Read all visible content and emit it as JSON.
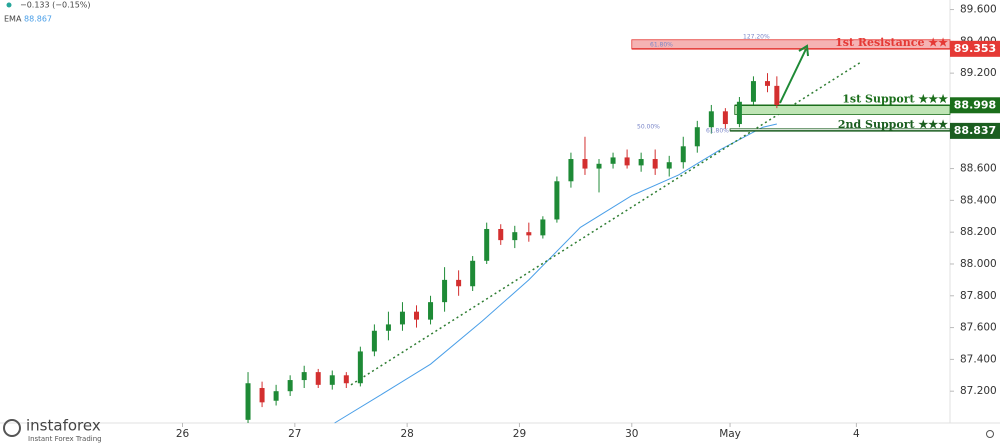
{
  "header": {
    "change": "−0.133 (−0.15%)",
    "ema_name": "EMA",
    "ema_value": "88.867",
    "logo": "instaforex",
    "logo_tagline": "Instant Forex Trading"
  },
  "chart_data": {
    "type": "candlestick",
    "x": [
      14,
      17,
      20,
      23,
      26,
      29,
      32,
      35,
      38,
      41,
      44,
      47,
      50,
      53,
      56,
      59,
      62,
      65,
      68,
      71,
      74,
      77,
      80,
      83,
      86,
      89,
      92,
      95,
      98,
      101,
      104,
      107,
      110,
      113,
      116,
      119,
      122,
      125,
      127
    ],
    "open": [
      87.02,
      87.22,
      87.14,
      87.2,
      87.27,
      87.32,
      87.24,
      87.3,
      87.25,
      87.45,
      87.58,
      87.62,
      87.7,
      87.65,
      87.76,
      87.9,
      87.86,
      88.02,
      88.22,
      88.15,
      88.2,
      88.18,
      88.28,
      88.52,
      88.66,
      88.6,
      88.63,
      88.67,
      88.62,
      88.66,
      88.6,
      88.64,
      88.74,
      88.86,
      88.96,
      88.88,
      89.02,
      89.15,
      89.12
    ],
    "high": [
      87.32,
      87.26,
      87.24,
      87.3,
      87.36,
      87.34,
      87.33,
      87.32,
      87.48,
      87.62,
      87.7,
      87.76,
      87.74,
      87.8,
      87.98,
      87.96,
      88.05,
      88.26,
      88.25,
      88.24,
      88.26,
      88.3,
      88.55,
      88.7,
      88.8,
      88.66,
      88.7,
      88.72,
      88.7,
      88.72,
      88.68,
      88.8,
      88.9,
      89.0,
      88.98,
      89.05,
      89.18,
      89.2,
      89.18
    ],
    "low": [
      87.0,
      87.1,
      87.11,
      87.17,
      87.22,
      87.22,
      87.21,
      87.22,
      87.23,
      87.42,
      87.52,
      87.58,
      87.6,
      87.62,
      87.7,
      87.8,
      87.83,
      88.0,
      88.12,
      88.1,
      88.14,
      88.16,
      88.26,
      88.48,
      88.56,
      88.45,
      88.6,
      88.6,
      88.58,
      88.56,
      88.55,
      88.6,
      88.7,
      88.82,
      88.85,
      88.86,
      89.0,
      89.08,
      88.98
    ],
    "close": [
      87.25,
      87.13,
      87.2,
      87.27,
      87.32,
      87.24,
      87.3,
      87.25,
      87.45,
      87.58,
      87.62,
      87.7,
      87.65,
      87.76,
      87.9,
      87.86,
      88.02,
      88.22,
      88.15,
      88.2,
      88.18,
      88.28,
      88.52,
      88.66,
      88.6,
      88.63,
      88.67,
      88.62,
      88.66,
      88.6,
      88.64,
      88.74,
      88.86,
      88.96,
      88.88,
      89.02,
      89.15,
      89.12,
      89.0
    ],
    "up_color": "#1e8a36",
    "down_color": "#d32f2f",
    "xlim": [
      -39,
      164
    ],
    "xticks": [
      {
        "value": 0,
        "label": "26"
      },
      {
        "value": 24,
        "label": "27"
      },
      {
        "value": 48,
        "label": "28"
      },
      {
        "value": 72,
        "label": "29"
      },
      {
        "value": 96,
        "label": "30"
      },
      {
        "value": 117,
        "label": "May"
      },
      {
        "value": 144,
        "label": "4"
      }
    ],
    "ylim": [
      87.0,
      89.66
    ],
    "yticks": [
      {
        "value": 89.6,
        "label": "89.600"
      },
      {
        "value": 89.4,
        "label": "89.400"
      },
      {
        "value": 89.2,
        "label": "89.200"
      },
      {
        "value": 88.6,
        "label": "88.600"
      },
      {
        "value": 88.4,
        "label": "88.400"
      },
      {
        "value": 88.2,
        "label": "88.200"
      },
      {
        "value": 88.0,
        "label": "88.000"
      },
      {
        "value": 87.8,
        "label": "87.800"
      },
      {
        "value": 87.6,
        "label": "87.600"
      },
      {
        "value": 87.4,
        "label": "87.400"
      },
      {
        "value": 87.2,
        "label": "87.200"
      }
    ],
    "ema": {
      "color": "#4a9fe8",
      "x": [
        32.5,
        42,
        53,
        64,
        74,
        85,
        96,
        106,
        115,
        124,
        127
      ],
      "values": [
        87.0,
        87.17,
        87.37,
        87.64,
        87.9,
        88.23,
        88.43,
        88.56,
        88.72,
        88.86,
        88.88
      ]
    },
    "trendline": {
      "color": "#2e7d32",
      "x": [
        36,
        145
      ],
      "values": [
        87.24,
        89.27
      ]
    },
    "levels": [
      {
        "label": "1st Resistance ★★",
        "value": 89.353,
        "band": [
          89.353,
          89.41
        ],
        "start": 96,
        "color": "#e53935",
        "fill": "#f5b3b3"
      },
      {
        "label": "1st Support ★★★",
        "value": 88.998,
        "band": [
          88.94,
          88.998
        ],
        "start": 118,
        "color": "#1b6e1b",
        "fill": "#bfe5b5"
      },
      {
        "label": "2nd Support ★★★",
        "value": 88.837,
        "band": [
          88.837,
          88.85
        ],
        "start": 117,
        "color": "#1b5e20",
        "fill": "#ffffff"
      }
    ],
    "fib_labels": [
      "127.20%",
      "61.80%",
      "50.00%",
      "61.80%"
    ]
  }
}
